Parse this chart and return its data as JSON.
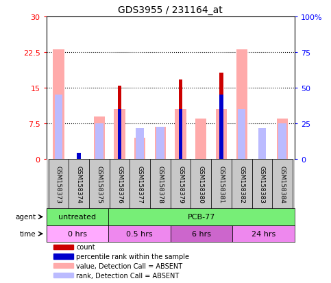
{
  "title": "GDS3955 / 231164_at",
  "samples": [
    "GSM158373",
    "GSM158374",
    "GSM158375",
    "GSM158376",
    "GSM158377",
    "GSM158378",
    "GSM158379",
    "GSM158380",
    "GSM158381",
    "GSM158382",
    "GSM158383",
    "GSM158384"
  ],
  "count_values": [
    0,
    0,
    0,
    15.5,
    0,
    0,
    16.8,
    0,
    18.2,
    0,
    0,
    0
  ],
  "percentile_values": [
    0,
    1.3,
    0,
    10.5,
    0,
    0,
    10.5,
    0,
    13.5,
    0,
    0,
    0
  ],
  "absent_value_values": [
    23.0,
    0,
    9.0,
    10.5,
    4.5,
    6.8,
    10.5,
    8.5,
    10.5,
    23.0,
    0,
    8.5
  ],
  "absent_rank_values": [
    13.5,
    0,
    7.5,
    0,
    6.5,
    6.8,
    0,
    0,
    0,
    10.5,
    6.5,
    7.5
  ],
  "ylim": [
    0,
    30
  ],
  "yticks": [
    0,
    7.5,
    15,
    22.5,
    30
  ],
  "yticklabels": [
    "0",
    "7.5",
    "15",
    "22.5",
    "30"
  ],
  "y2lim": [
    0,
    100
  ],
  "y2ticks": [
    0,
    25,
    50,
    75,
    100
  ],
  "y2ticklabels": [
    "0",
    "25",
    "50",
    "75",
    "100%"
  ],
  "color_count": "#cc0000",
  "color_percentile": "#0000cc",
  "color_absent_value": "#ffaaaa",
  "color_absent_rank": "#bbbbff",
  "agent_untreated": "untreated",
  "agent_pcb": "PCB-77",
  "time_0": "0 hrs",
  "time_05": "0.5 hrs",
  "time_6": "6 hrs",
  "time_24": "24 hrs",
  "agent_color_untreated": "#77ee77",
  "agent_color_pcb": "#77ee77",
  "time_color_0": "#ffaaff",
  "time_color_05": "#ee88ee",
  "time_color_6": "#cc66cc",
  "time_color_24": "#ee88ee",
  "bg_color": "#c8c8c8",
  "plot_bg": "#ffffff"
}
